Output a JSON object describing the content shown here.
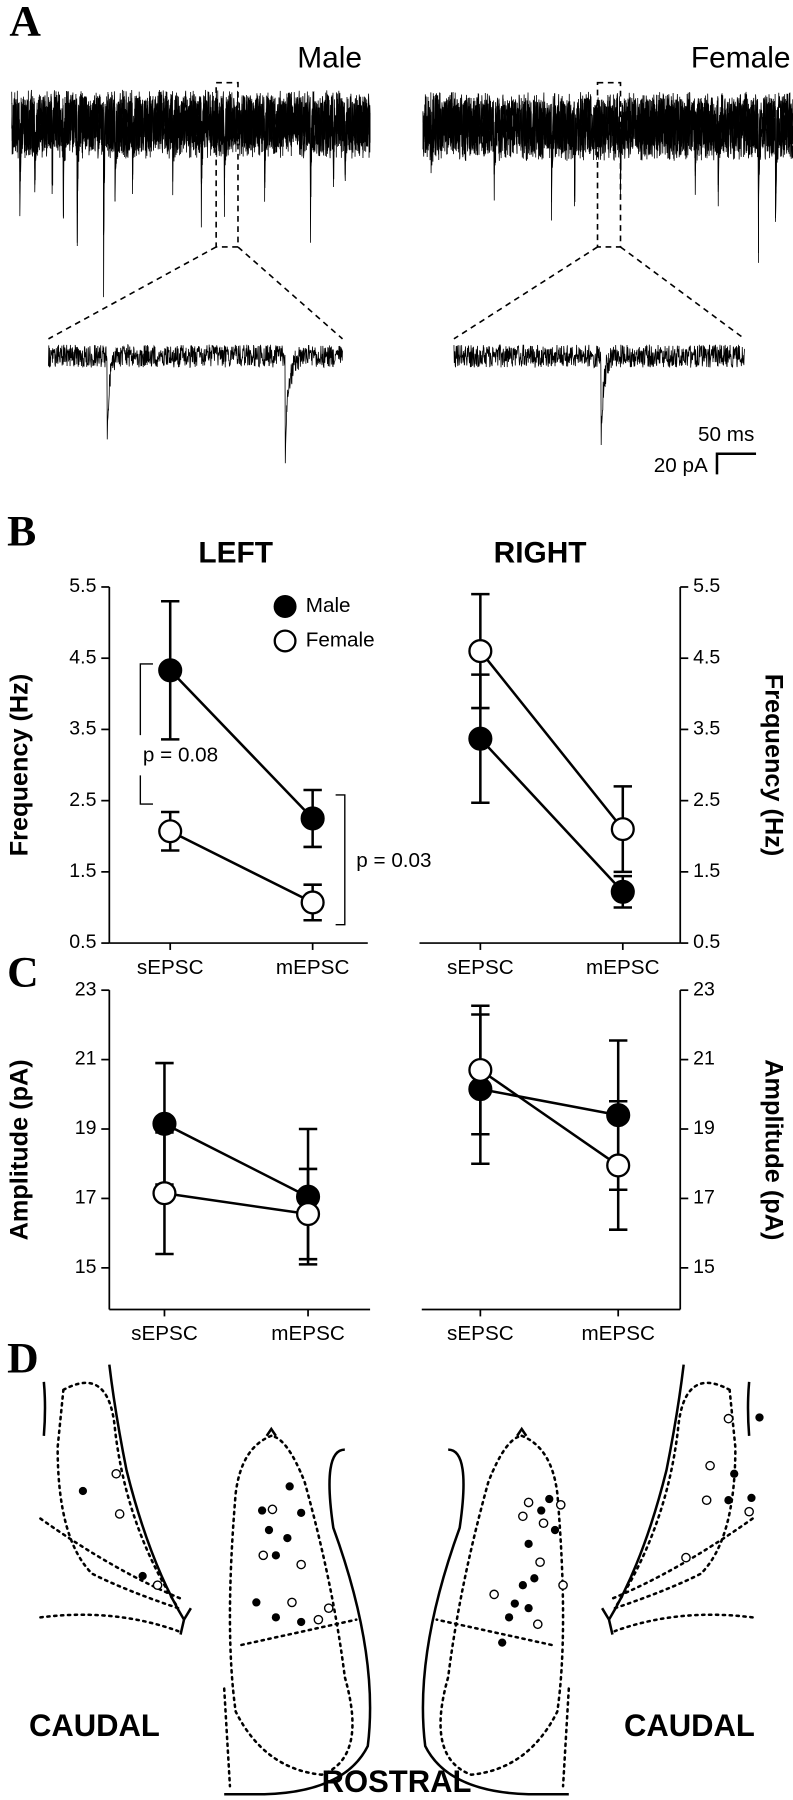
{
  "panel_labels": [
    "A",
    "B",
    "C",
    "D"
  ],
  "traces": {
    "male": "Male",
    "female": "Female",
    "scale_time": "50 ms",
    "scale_current": "20 pA"
  },
  "region_labels": [
    "CAUDAL",
    "ROSTRAL",
    "CAUDAL"
  ],
  "chart_data": [
    {
      "type": "line",
      "title": "LEFT",
      "ylabel": "Frequency (Hz)",
      "yaxis_side": "left",
      "legend": "top right",
      "categories": [
        "sEPSC",
        "mEPSC"
      ],
      "ylim": [
        0.5,
        5.5
      ],
      "yticks": [
        0.5,
        1.5,
        2.5,
        3.5,
        4.5,
        5.5
      ],
      "annotations": [
        "p = 0.08",
        "p = 0.03"
      ],
      "series": [
        {
          "name": "Male",
          "color": "#000000",
          "fill": "#000000",
          "values": [
            4.33,
            2.25
          ],
          "errors": [
            0.97,
            0.4
          ]
        },
        {
          "name": "Female",
          "color": "#000000",
          "fill": "#ffffff",
          "values": [
            2.07,
            1.07
          ],
          "errors": [
            0.27,
            0.25
          ]
        }
      ]
    },
    {
      "type": "line",
      "title": "RIGHT",
      "ylabel": "Frequency (Hz)",
      "yaxis_side": "right",
      "categories": [
        "sEPSC",
        "mEPSC"
      ],
      "ylim": [
        0.5,
        5.5
      ],
      "yticks": [
        0.5,
        1.5,
        2.5,
        3.5,
        4.5,
        5.5
      ],
      "series": [
        {
          "color": "#000000",
          "fill": "#000000",
          "values": [
            3.37,
            1.22
          ],
          "errors": [
            0.9,
            0.22
          ]
        },
        {
          "color": "#000000",
          "fill": "#ffffff",
          "values": [
            4.6,
            2.1
          ],
          "errors": [
            0.8,
            0.6
          ]
        }
      ]
    },
    {
      "type": "line",
      "ylabel": "Amplitude (pA)",
      "yaxis_side": "left",
      "categories": [
        "sEPSC",
        "mEPSC"
      ],
      "ylim": [
        13.8,
        23
      ],
      "yticks": [
        15,
        17,
        19,
        21,
        23
      ],
      "series": [
        {
          "color": "#000000",
          "fill": "#000000",
          "values": [
            19.15,
            17.05
          ],
          "errors": [
            1.75,
            1.95
          ]
        },
        {
          "color": "#000000",
          "fill": "#ffffff",
          "values": [
            17.15,
            16.55
          ],
          "errors": [
            1.75,
            1.3
          ]
        }
      ]
    },
    {
      "type": "line",
      "ylabel": "Amplitude (pA)",
      "yaxis_side": "right",
      "categories": [
        "sEPSC",
        "mEPSC"
      ],
      "ylim": [
        13.8,
        23
      ],
      "yticks": [
        15,
        17,
        19,
        21,
        23
      ],
      "series": [
        {
          "color": "#000000",
          "fill": "#000000",
          "values": [
            20.15,
            19.4
          ],
          "errors": [
            2.15,
            2.15
          ]
        },
        {
          "color": "#000000",
          "fill": "#ffffff",
          "values": [
            20.7,
            17.95
          ],
          "errors": [
            1.85,
            1.85
          ]
        }
      ]
    }
  ]
}
